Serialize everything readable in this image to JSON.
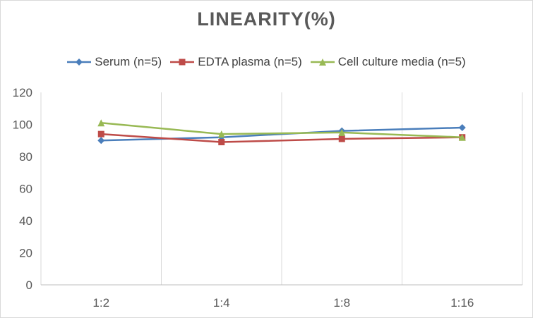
{
  "chart_data": {
    "type": "line",
    "title": "LINEARITY(%)",
    "xlabel": "",
    "ylabel": "",
    "categories": [
      "1:2",
      "1:4",
      "1:8",
      "1:16"
    ],
    "ylim": [
      0,
      120
    ],
    "yticks": [
      0,
      20,
      40,
      60,
      80,
      100,
      120
    ],
    "grid": "vertical",
    "legend_position": "top",
    "series": [
      {
        "name": "Serum (n=5)",
        "values": [
          90,
          92,
          96,
          98
        ],
        "color": "#4a7ebb",
        "marker": "diamond"
      },
      {
        "name": "EDTA plasma (n=5)",
        "values": [
          94,
          89,
          91,
          92
        ],
        "color": "#be4b48",
        "marker": "square"
      },
      {
        "name": "Cell culture media (n=5)",
        "values": [
          101,
          94,
          95,
          92
        ],
        "color": "#98b954",
        "marker": "triangle"
      }
    ]
  }
}
